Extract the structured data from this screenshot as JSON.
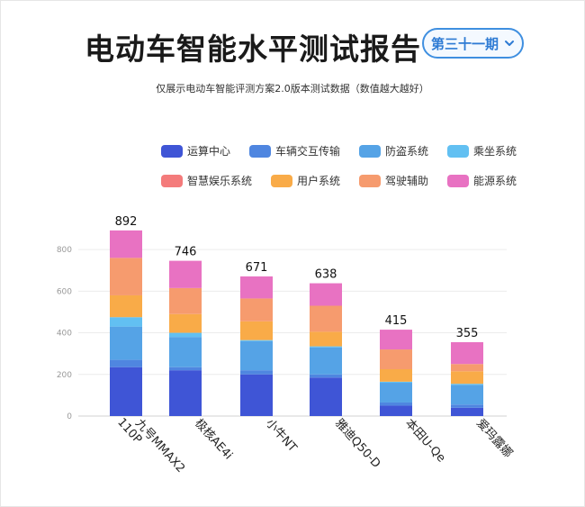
{
  "header": {
    "title": "电动车智能水平测试报告",
    "issue_label": "第三十一期",
    "subtitle": "仅展示电动车智能评测方案2.0版本测试数据（数值越大越好）"
  },
  "legend": {
    "row1": [
      {
        "name": "运算中心",
        "color": "#3f55d6"
      },
      {
        "name": "车辆交互传输",
        "color": "#4f86e0"
      },
      {
        "name": "防盗系统",
        "color": "#55a3e6"
      },
      {
        "name": "乘坐系统",
        "color": "#62c0f2"
      }
    ],
    "row2": [
      {
        "name": "智慧娱乐系统",
        "color": "#f47b7b"
      },
      {
        "name": "用户系统",
        "color": "#f9ab48"
      },
      {
        "name": "驾驶辅助",
        "color": "#f69b6e"
      },
      {
        "name": "能源系统",
        "color": "#e872c2"
      }
    ]
  },
  "chart_data": {
    "type": "bar",
    "stacked": true,
    "categories": [
      "九号MMAX2 110P",
      "极核AE4i",
      "小牛NT",
      "雅迪Q50-D",
      "本田U-Qe",
      "爱玛露娜"
    ],
    "totals": [
      892,
      746,
      671,
      638,
      415,
      355
    ],
    "ylim": [
      0,
      900
    ],
    "yticks": [
      0,
      200,
      400,
      600,
      800
    ],
    "grid": true,
    "series": [
      {
        "name": "运算中心",
        "color": "#3f55d6",
        "values": [
          235,
          220,
          200,
          185,
          50,
          40
        ]
      },
      {
        "name": "车辆交互传输",
        "color": "#4f86e0",
        "values": [
          35,
          15,
          20,
          15,
          15,
          15
        ]
      },
      {
        "name": "防盗系统",
        "color": "#55a3e6",
        "values": [
          160,
          145,
          140,
          130,
          95,
          95
        ]
      },
      {
        "name": "乘坐系统",
        "color": "#62c0f2",
        "values": [
          45,
          20,
          5,
          5,
          5,
          5
        ]
      },
      {
        "name": "智慧娱乐系统",
        "color": "#f47b7b",
        "values": [
          0,
          0,
          0,
          0,
          0,
          0
        ]
      },
      {
        "name": "用户系统",
        "color": "#f9ab48",
        "values": [
          105,
          90,
          90,
          70,
          60,
          60
        ]
      },
      {
        "name": "驾驶辅助",
        "color": "#f69b6e",
        "values": [
          180,
          125,
          110,
          125,
          95,
          35
        ]
      },
      {
        "name": "能源系统",
        "color": "#e872c2",
        "values": [
          132,
          131,
          106,
          108,
          95,
          105
        ]
      }
    ]
  }
}
